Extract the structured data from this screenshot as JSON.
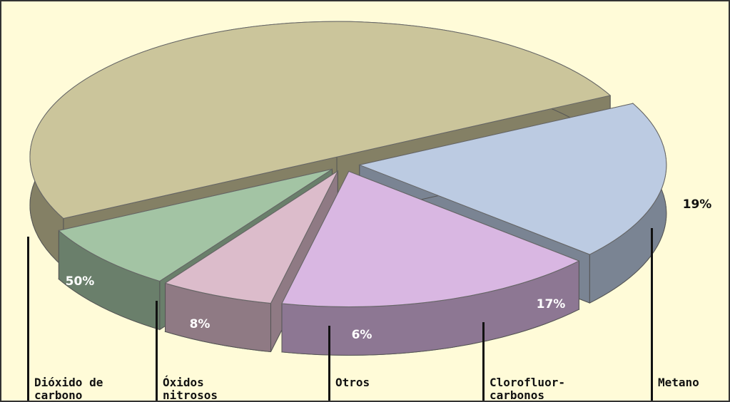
{
  "chart_data": {
    "type": "pie",
    "categories": [
      "Dióxido de\ncarbono",
      "Óxidos\nnitrosos",
      "Otros",
      "Clorofluor-\ncarbonos",
      "Metano"
    ],
    "values": [
      50,
      8,
      6,
      17,
      19
    ],
    "value_labels": [
      "50%",
      "8%",
      "6%",
      "17%",
      "19%"
    ],
    "colors": [
      "#cbc59b",
      "#a3c4a4",
      "#dcbccb",
      "#d9b7e2",
      "#bccbe2"
    ]
  }
}
